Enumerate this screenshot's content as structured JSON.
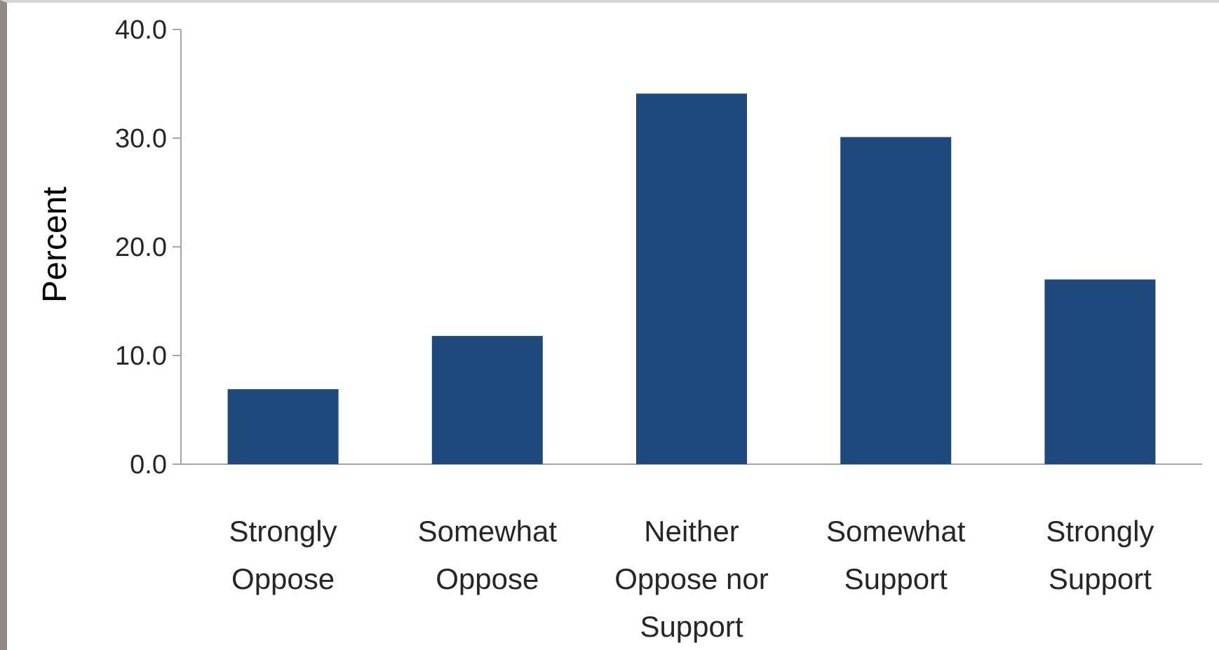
{
  "chart_data": {
    "type": "bar",
    "title": "",
    "xlabel": "",
    "ylabel": "Percent",
    "ylim": [
      0,
      40
    ],
    "yticks": [
      0,
      10,
      20,
      30,
      40
    ],
    "ytick_labels": [
      "0.0",
      "10.0",
      "20.0",
      "30.0",
      "40.0"
    ],
    "categories": [
      [
        "Strongly",
        "Oppose"
      ],
      [
        "Somewhat",
        "Oppose"
      ],
      [
        "Neither",
        "Oppose nor",
        "Support"
      ],
      [
        "Somewhat",
        "Support"
      ],
      [
        "Strongly",
        "Support"
      ]
    ],
    "values": [
      6.9,
      11.8,
      34.1,
      30.1,
      17.0
    ],
    "bar_color": "#1f497d",
    "grid": false,
    "legend": "none"
  }
}
